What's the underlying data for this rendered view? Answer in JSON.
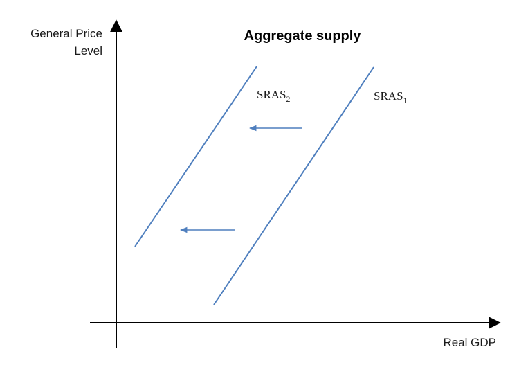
{
  "title": "Aggregate supply",
  "y_axis_label_line1": "General Price",
  "y_axis_label_line2": "Level",
  "x_axis_label": "Real GDP",
  "curves": [
    {
      "id": "sras1",
      "label": "SRAS",
      "subscript": "1"
    },
    {
      "id": "sras2",
      "label": "SRAS",
      "subscript": "2"
    }
  ],
  "colors": {
    "curve": "#4f7fbe",
    "arrow": "#4f7fbe",
    "axis": "#000000"
  },
  "shift_direction": "left"
}
